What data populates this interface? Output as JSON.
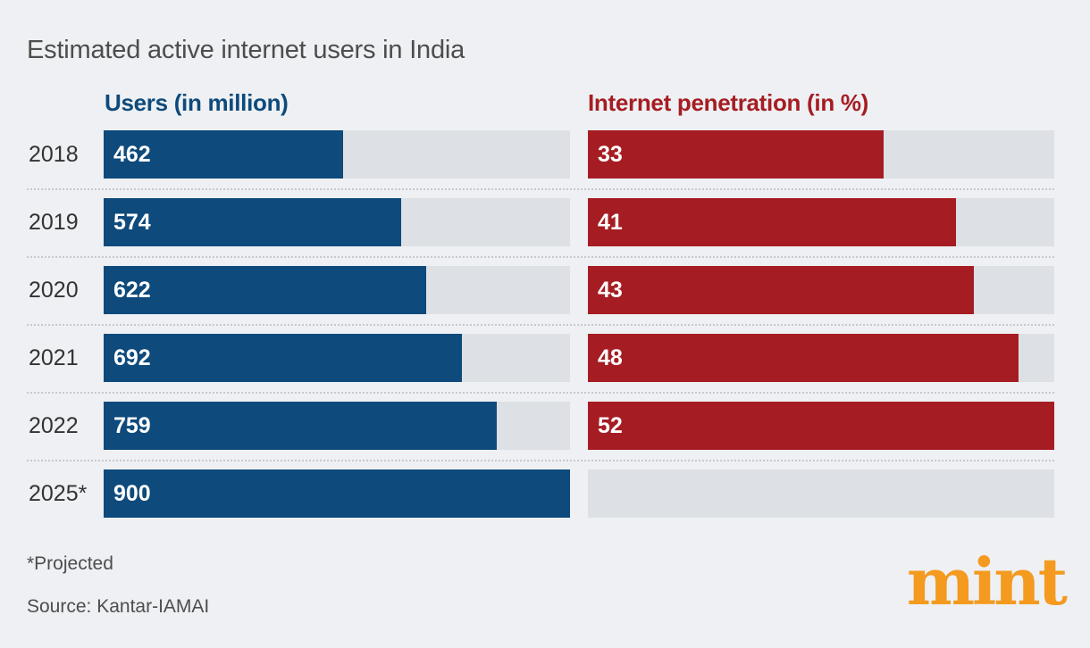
{
  "title": "Estimated active internet users in India",
  "columns": {
    "users": "Users (in million)",
    "penetration": "Internet penetration (in %)"
  },
  "footnote": "*Projected",
  "source": "Source: Kantar-IAMAI",
  "logo": "mint",
  "colors": {
    "users_bar": "#0e4a7b",
    "penetration_bar": "#a51d22",
    "track": "#dde0e4",
    "background": "#eef0f3",
    "logo": "#f39a1f"
  },
  "chart_data": [
    {
      "type": "bar",
      "orientation": "horizontal",
      "title": "Users (in million)",
      "categories": [
        "2018",
        "2019",
        "2020",
        "2021",
        "2022",
        "2025*"
      ],
      "values": [
        462,
        574,
        622,
        692,
        759,
        900
      ],
      "xlim": [
        0,
        900
      ]
    },
    {
      "type": "bar",
      "orientation": "horizontal",
      "title": "Internet penetration (in %)",
      "categories": [
        "2018",
        "2019",
        "2020",
        "2021",
        "2022",
        "2025*"
      ],
      "values": [
        33,
        41,
        43,
        48,
        52,
        null
      ],
      "xlim": [
        0,
        52
      ]
    }
  ]
}
